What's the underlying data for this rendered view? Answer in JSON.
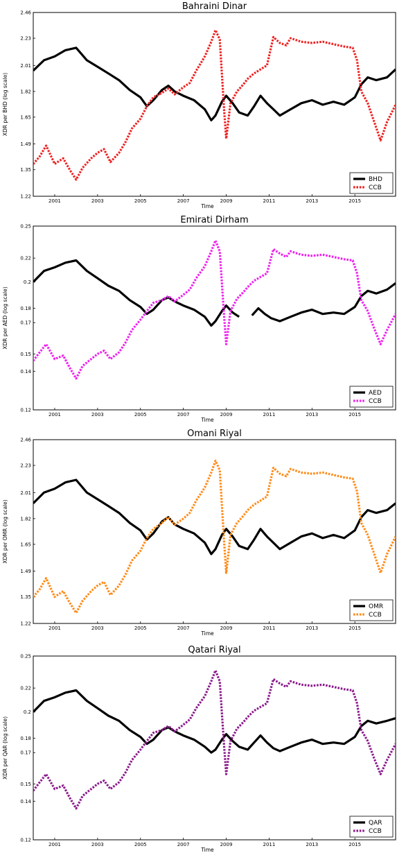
{
  "chart_data": [
    {
      "type": "line",
      "title": "Bahraini Dinar",
      "xlabel": "Time",
      "ylabel": "XDR per BHD (log scale)",
      "yscale": "log",
      "xlim": [
        2000.0,
        2016.9
      ],
      "ylim": [
        1.22,
        2.46
      ],
      "yticks": [
        "1.22",
        "1.35",
        "1.49",
        "1.65",
        "1.82",
        "2.01",
        "2.23",
        "2.46"
      ],
      "xticks": [
        "2001",
        "2003",
        "2005",
        "2007",
        "2009",
        "2011",
        "2013",
        "2015"
      ],
      "legend": "bottom-right",
      "series": [
        {
          "name": "BHD",
          "style": "solid",
          "color": "#000000",
          "x": [
            2000.0,
            2000.5,
            2001.0,
            2001.5,
            2002.0,
            2002.5,
            2003.0,
            2003.5,
            2004.0,
            2004.5,
            2005.0,
            2005.3,
            2005.6,
            2006.0,
            2006.3,
            2006.6,
            2007.0,
            2007.5,
            2008.0,
            2008.3,
            2008.5,
            2008.8,
            2009.0,
            2009.3,
            2009.6,
            2010.0,
            2010.3,
            2010.6,
            2010.9,
            2011.2,
            2011.5,
            2012.0,
            2012.5,
            2013.0,
            2013.5,
            2014.0,
            2014.5,
            2015.0,
            2015.3,
            2015.6,
            2016.0,
            2016.5,
            2016.9
          ],
          "y": [
            1.97,
            2.05,
            2.08,
            2.13,
            2.15,
            2.05,
            2.0,
            1.95,
            1.9,
            1.83,
            1.78,
            1.72,
            1.76,
            1.83,
            1.86,
            1.82,
            1.79,
            1.76,
            1.7,
            1.63,
            1.66,
            1.75,
            1.79,
            1.74,
            1.68,
            1.66,
            1.72,
            1.79,
            1.74,
            1.7,
            1.66,
            1.7,
            1.74,
            1.76,
            1.73,
            1.75,
            1.73,
            1.78,
            1.87,
            1.92,
            1.9,
            1.92,
            1.98
          ]
        },
        {
          "name": "CCB",
          "style": "dotted",
          "color": "#ee2222",
          "x": [
            2000.0,
            2000.3,
            2000.6,
            2001.0,
            2001.4,
            2001.7,
            2002.0,
            2002.3,
            2002.7,
            2003.0,
            2003.3,
            2003.6,
            2004.0,
            2004.3,
            2004.6,
            2005.0,
            2005.3,
            2005.6,
            2006.0,
            2006.3,
            2006.6,
            2007.0,
            2007.3,
            2007.6,
            2008.0,
            2008.3,
            2008.5,
            2008.7,
            2008.9,
            2009.0,
            2009.2,
            2009.5,
            2009.8,
            2010.0,
            2010.3,
            2010.6,
            2010.9,
            2011.2,
            2011.5,
            2011.8,
            2012.0,
            2012.5,
            2013.0,
            2013.5,
            2014.0,
            2014.5,
            2014.9,
            2015.1,
            2015.3,
            2015.6,
            2015.9,
            2016.2,
            2016.5,
            2016.9
          ],
          "y": [
            1.38,
            1.42,
            1.48,
            1.38,
            1.41,
            1.35,
            1.3,
            1.36,
            1.41,
            1.44,
            1.46,
            1.39,
            1.44,
            1.5,
            1.58,
            1.64,
            1.72,
            1.78,
            1.81,
            1.84,
            1.8,
            1.85,
            1.88,
            1.97,
            2.08,
            2.2,
            2.3,
            2.22,
            1.7,
            1.52,
            1.74,
            1.82,
            1.87,
            1.91,
            1.95,
            1.98,
            2.01,
            2.24,
            2.19,
            2.17,
            2.23,
            2.2,
            2.19,
            2.2,
            2.18,
            2.16,
            2.15,
            2.05,
            1.82,
            1.74,
            1.62,
            1.51,
            1.62,
            1.73
          ]
        }
      ]
    },
    {
      "type": "line",
      "title": "Emirati Dirham",
      "xlabel": "Time",
      "ylabel": "XDR per AED (log scale)",
      "yscale": "log",
      "xlim": [
        2000.0,
        2016.9
      ],
      "ylim": [
        0.12,
        0.25
      ],
      "yticks": [
        "0.12",
        "0.14",
        "0.15",
        "0.17",
        "0.18",
        "0.2",
        "0.22",
        "0.25"
      ],
      "xticks": [
        "2001",
        "2003",
        "2005",
        "2007",
        "2009",
        "2011",
        "2013",
        "2015"
      ],
      "legend": "bottom-right",
      "series": [
        {
          "name": "AED",
          "style": "solid",
          "color": "#000000",
          "segments": [
            {
              "x": [
                2000.0,
                2000.5,
                2001.0,
                2001.5,
                2002.0,
                2002.5,
                2003.0,
                2003.5,
                2004.0,
                2004.5,
                2005.0,
                2005.3,
                2005.6,
                2006.0,
                2006.3,
                2006.6,
                2007.0,
                2007.5,
                2008.0,
                2008.3,
                2008.5,
                2008.8,
                2009.0,
                2009.3,
                2009.6
              ],
              "y": [
                0.2,
                0.209,
                0.212,
                0.216,
                0.218,
                0.209,
                0.203,
                0.197,
                0.193,
                0.186,
                0.181,
                0.176,
                0.179,
                0.186,
                0.188,
                0.185,
                0.182,
                0.179,
                0.174,
                0.168,
                0.171,
                0.178,
                0.182,
                0.177,
                0.174
              ]
            },
            {
              "x": [
                2010.2,
                2010.5,
                2010.8,
                2011.1,
                2011.5,
                2012.0,
                2012.5,
                2013.0,
                2013.5,
                2014.0,
                2014.5,
                2015.0,
                2015.3,
                2015.6,
                2016.0,
                2016.5,
                2016.9
              ],
              "y": [
                0.175,
                0.18,
                0.176,
                0.173,
                0.171,
                0.174,
                0.177,
                0.179,
                0.176,
                0.177,
                0.176,
                0.181,
                0.189,
                0.193,
                0.191,
                0.194,
                0.199
              ]
            }
          ]
        },
        {
          "name": "CCB",
          "style": "dotted",
          "color": "#ee22ee",
          "x": [
            2000.0,
            2000.3,
            2000.6,
            2001.0,
            2001.4,
            2001.7,
            2002.0,
            2002.3,
            2002.7,
            2003.0,
            2003.3,
            2003.6,
            2004.0,
            2004.3,
            2004.6,
            2005.0,
            2005.3,
            2005.6,
            2006.0,
            2006.3,
            2006.6,
            2007.0,
            2007.3,
            2007.6,
            2008.0,
            2008.3,
            2008.5,
            2008.7,
            2008.9,
            2009.0,
            2009.2,
            2009.5,
            2009.8,
            2010.0,
            2010.3,
            2010.6,
            2010.9,
            2011.2,
            2011.5,
            2011.8,
            2012.0,
            2012.5,
            2013.0,
            2013.5,
            2014.0,
            2014.5,
            2014.9,
            2015.1,
            2015.3,
            2015.6,
            2015.9,
            2016.2,
            2016.5,
            2016.9
          ],
          "y": [
            0.146,
            0.151,
            0.156,
            0.147,
            0.149,
            0.142,
            0.136,
            0.143,
            0.147,
            0.15,
            0.152,
            0.147,
            0.151,
            0.157,
            0.165,
            0.172,
            0.178,
            0.184,
            0.186,
            0.189,
            0.185,
            0.19,
            0.194,
            0.203,
            0.213,
            0.226,
            0.236,
            0.226,
            0.175,
            0.156,
            0.178,
            0.187,
            0.192,
            0.196,
            0.201,
            0.204,
            0.207,
            0.228,
            0.224,
            0.221,
            0.226,
            0.223,
            0.222,
            0.223,
            0.221,
            0.219,
            0.218,
            0.207,
            0.186,
            0.178,
            0.166,
            0.156,
            0.165,
            0.176
          ]
        }
      ]
    },
    {
      "type": "line",
      "title": "Omani Riyal",
      "xlabel": "Time",
      "ylabel": "XDR per OMR (log scale)",
      "yscale": "log",
      "xlim": [
        2000.0,
        2016.9
      ],
      "ylim": [
        1.22,
        2.46
      ],
      "yticks": [
        "1.22",
        "1.35",
        "1.49",
        "1.65",
        "1.82",
        "2.01",
        "2.23",
        "2.46"
      ],
      "xticks": [
        "2001",
        "2003",
        "2005",
        "2007",
        "2009",
        "2011",
        "2013",
        "2015"
      ],
      "legend": "bottom-right",
      "series": [
        {
          "name": "OMR",
          "style": "solid",
          "color": "#000000",
          "x": [
            2000.0,
            2000.5,
            2001.0,
            2001.5,
            2002.0,
            2002.5,
            2003.0,
            2003.5,
            2004.0,
            2004.5,
            2005.0,
            2005.3,
            2005.6,
            2006.0,
            2006.3,
            2006.6,
            2007.0,
            2007.5,
            2008.0,
            2008.3,
            2008.5,
            2008.8,
            2009.0,
            2009.3,
            2009.6,
            2010.0,
            2010.3,
            2010.6,
            2010.9,
            2011.2,
            2011.5,
            2012.0,
            2012.5,
            2013.0,
            2013.5,
            2014.0,
            2014.5,
            2015.0,
            2015.3,
            2015.6,
            2016.0,
            2016.5,
            2016.9
          ],
          "y": [
            1.93,
            2.01,
            2.04,
            2.09,
            2.11,
            2.01,
            1.96,
            1.91,
            1.86,
            1.79,
            1.74,
            1.68,
            1.72,
            1.8,
            1.83,
            1.78,
            1.75,
            1.72,
            1.66,
            1.59,
            1.62,
            1.71,
            1.75,
            1.7,
            1.64,
            1.62,
            1.68,
            1.75,
            1.7,
            1.66,
            1.62,
            1.66,
            1.7,
            1.72,
            1.69,
            1.71,
            1.69,
            1.74,
            1.83,
            1.88,
            1.86,
            1.88,
            1.93
          ]
        },
        {
          "name": "CCB",
          "style": "dotted",
          "color": "#ff8c1a",
          "x": [
            2000.0,
            2000.3,
            2000.6,
            2001.0,
            2001.4,
            2001.7,
            2002.0,
            2002.3,
            2002.7,
            2003.0,
            2003.3,
            2003.6,
            2004.0,
            2004.3,
            2004.6,
            2005.0,
            2005.3,
            2005.6,
            2006.0,
            2006.3,
            2006.6,
            2007.0,
            2007.3,
            2007.6,
            2008.0,
            2008.3,
            2008.5,
            2008.7,
            2008.9,
            2009.0,
            2009.2,
            2009.5,
            2009.8,
            2010.0,
            2010.3,
            2010.6,
            2010.9,
            2011.2,
            2011.5,
            2011.8,
            2012.0,
            2012.5,
            2013.0,
            2013.5,
            2014.0,
            2014.5,
            2014.9,
            2015.1,
            2015.3,
            2015.6,
            2015.9,
            2016.2,
            2016.5,
            2016.9
          ],
          "y": [
            1.35,
            1.39,
            1.45,
            1.35,
            1.38,
            1.32,
            1.27,
            1.33,
            1.38,
            1.41,
            1.43,
            1.36,
            1.41,
            1.47,
            1.55,
            1.61,
            1.69,
            1.75,
            1.79,
            1.83,
            1.78,
            1.82,
            1.86,
            1.95,
            2.05,
            2.17,
            2.27,
            2.19,
            1.67,
            1.48,
            1.71,
            1.79,
            1.84,
            1.88,
            1.92,
            1.95,
            1.98,
            2.21,
            2.16,
            2.14,
            2.2,
            2.17,
            2.16,
            2.17,
            2.15,
            2.13,
            2.12,
            2.02,
            1.79,
            1.71,
            1.59,
            1.48,
            1.59,
            1.7
          ]
        }
      ]
    },
    {
      "type": "line",
      "title": "Qatari Riyal",
      "xlabel": "Time",
      "ylabel": "XDR per QAR (log scale)",
      "yscale": "log",
      "xlim": [
        2000.0,
        2016.9
      ],
      "ylim": [
        0.12,
        0.25
      ],
      "yticks": [
        "0.12",
        "0.14",
        "0.15",
        "0.17",
        "0.18",
        "0.2",
        "0.22",
        "0.25"
      ],
      "xticks": [
        "2001",
        "2003",
        "2005",
        "2007",
        "2009",
        "2011",
        "2013",
        "2015"
      ],
      "legend": "bottom-right",
      "series": [
        {
          "name": "QAR",
          "style": "solid",
          "color": "#000000",
          "x": [
            2000.0,
            2000.5,
            2001.0,
            2001.5,
            2002.0,
            2002.5,
            2003.0,
            2003.5,
            2004.0,
            2004.5,
            2005.0,
            2005.3,
            2005.6,
            2006.0,
            2006.3,
            2006.6,
            2007.0,
            2007.5,
            2008.0,
            2008.3,
            2008.5,
            2008.8,
            2009.0,
            2009.3,
            2009.6,
            2010.0,
            2010.3,
            2010.6,
            2010.9,
            2011.2,
            2011.5,
            2012.0,
            2012.5,
            2013.0,
            2013.5,
            2014.0,
            2014.5,
            2015.0,
            2015.3,
            2015.6,
            2016.0,
            2016.5,
            2016.9
          ],
          "y": [
            0.2,
            0.209,
            0.212,
            0.216,
            0.218,
            0.209,
            0.203,
            0.197,
            0.193,
            0.186,
            0.181,
            0.176,
            0.179,
            0.186,
            0.188,
            0.185,
            0.182,
            0.179,
            0.174,
            0.17,
            0.172,
            0.179,
            0.183,
            0.178,
            0.174,
            0.172,
            0.177,
            0.182,
            0.177,
            0.173,
            0.171,
            0.174,
            0.177,
            0.179,
            0.176,
            0.177,
            0.176,
            0.181,
            0.189,
            0.193,
            0.191,
            0.193,
            0.195
          ]
        },
        {
          "name": "CCB",
          "style": "dotted",
          "color": "#8b1a8b",
          "x": [
            2000.0,
            2000.3,
            2000.6,
            2001.0,
            2001.4,
            2001.7,
            2002.0,
            2002.3,
            2002.7,
            2003.0,
            2003.3,
            2003.6,
            2004.0,
            2004.3,
            2004.6,
            2005.0,
            2005.3,
            2005.6,
            2006.0,
            2006.3,
            2006.6,
            2007.0,
            2007.3,
            2007.6,
            2008.0,
            2008.3,
            2008.5,
            2008.7,
            2008.9,
            2009.0,
            2009.2,
            2009.5,
            2009.8,
            2010.0,
            2010.3,
            2010.6,
            2010.9,
            2011.2,
            2011.5,
            2011.8,
            2012.0,
            2012.5,
            2013.0,
            2013.5,
            2014.0,
            2014.5,
            2014.9,
            2015.1,
            2015.3,
            2015.6,
            2015.9,
            2016.2,
            2016.5,
            2016.9
          ],
          "y": [
            0.146,
            0.151,
            0.156,
            0.147,
            0.149,
            0.142,
            0.136,
            0.143,
            0.147,
            0.15,
            0.152,
            0.147,
            0.151,
            0.157,
            0.165,
            0.172,
            0.178,
            0.184,
            0.186,
            0.189,
            0.185,
            0.19,
            0.194,
            0.203,
            0.213,
            0.226,
            0.236,
            0.226,
            0.175,
            0.156,
            0.178,
            0.187,
            0.192,
            0.196,
            0.201,
            0.204,
            0.207,
            0.228,
            0.224,
            0.221,
            0.226,
            0.223,
            0.222,
            0.223,
            0.221,
            0.219,
            0.218,
            0.207,
            0.186,
            0.178,
            0.166,
            0.156,
            0.165,
            0.176
          ]
        }
      ]
    }
  ]
}
